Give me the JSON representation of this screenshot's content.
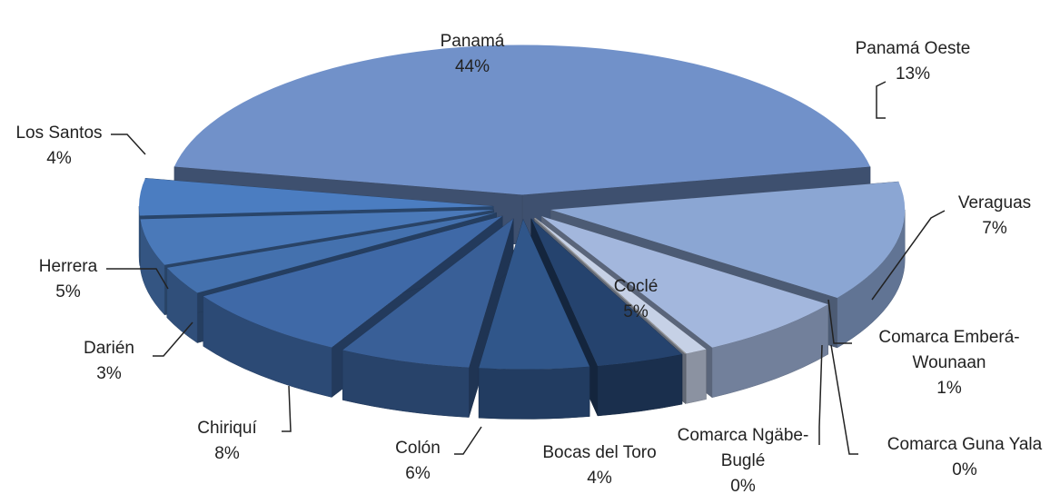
{
  "chart_data": {
    "type": "pie",
    "three_d": true,
    "exploded": true,
    "categories": [
      "Panamá",
      "Panamá Oeste",
      "Veraguas",
      "Comarca Emberá-Wounaan",
      "Comarca Guna Yala",
      "Comarca Ngäbe-Buglé",
      "Bocas del Toro",
      "Coclé",
      "Colón",
      "Chiriquí",
      "Darién",
      "Herrera",
      "Los Santos"
    ],
    "values": [
      44,
      13,
      7,
      1,
      0,
      0,
      4,
      5,
      6,
      8,
      3,
      5,
      4
    ],
    "value_labels": [
      "44%",
      "13%",
      "7%",
      "1%",
      "0%",
      "0%",
      "4%",
      "5%",
      "6%",
      "8%",
      "3%",
      "5%",
      "4%"
    ],
    "colors": [
      "#7191c9",
      "#8ba6d3",
      "#a3b7dd",
      "#c6d1e6",
      "#d2dae9",
      "#b3bfd6",
      "#25436e",
      "#30568a",
      "#395f97",
      "#3f69a7",
      "#4471ae",
      "#4a79b9",
      "#4b7dc1"
    ]
  }
}
